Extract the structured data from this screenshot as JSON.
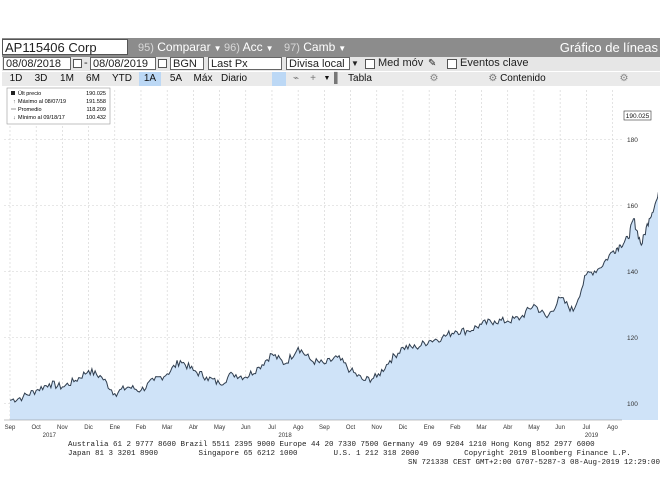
{
  "toolbar": {
    "ticker": "AP115406 Corp",
    "compare": {
      "num": "95)",
      "label": "Comparar"
    },
    "actions": {
      "num": "96)",
      "label": "Acc"
    },
    "change": {
      "num": "97)",
      "label": "Camb"
    },
    "view_title": "Gráfico de líneas"
  },
  "controls": {
    "start_date": "08/08/2018",
    "end_date": "08/08/2019",
    "source": "BGN",
    "field": "Last Px",
    "currency": "Divisa local",
    "moving_avg": "Med móv",
    "key_events": "Eventos clave",
    "separator": "-"
  },
  "periods": {
    "items": [
      "1D",
      "3D",
      "1M",
      "6M",
      "YTD",
      "1A",
      "5A",
      "Máx"
    ],
    "active": "1A",
    "frequency": "Diario",
    "table": "Tabla",
    "content": "Contenido"
  },
  "legend": {
    "last": {
      "label": "Últ precio",
      "value": "190.025"
    },
    "max": {
      "label": "Máximo al 08/07/19",
      "value": "191.558"
    },
    "avg": {
      "label": "Promedio",
      "value": "118.209"
    },
    "min": {
      "label": "Mínimo al 09/18/17",
      "value": "100.432"
    }
  },
  "colors": {
    "line": "#2f3d4e",
    "fill": "#cfe3f8",
    "grid": "#d0d0d0",
    "active_period": "#bcd8f5",
    "toolbar": "#8c8c8c"
  },
  "chart_data": {
    "type": "area",
    "x_months": [
      "Sep",
      "Oct",
      "Nov",
      "Dic",
      "Ene",
      "Feb",
      "Mar",
      "Abr",
      "May",
      "Jun",
      "Jul",
      "Ago",
      "Sep",
      "Oct",
      "Nov",
      "Dic",
      "Ene",
      "Feb",
      "Mar",
      "Abr",
      "May",
      "Jun",
      "Jul",
      "Ago"
    ],
    "x_years": [
      {
        "label": "2017",
        "month_index": 1.5
      },
      {
        "label": "2018",
        "month_index": 10.5
      },
      {
        "label": "2019",
        "month_index": 22.2
      }
    ],
    "yticks": [
      100,
      120,
      140,
      160,
      180
    ],
    "ylim": [
      95,
      195
    ],
    "last_price_label": "190.025",
    "series": [
      {
        "x": [
          0,
          0.5,
          1,
          1.5,
          2,
          2.5,
          3,
          3.5,
          4,
          4.5,
          5,
          5.5,
          6,
          6.5,
          7,
          7.5,
          8,
          8.5,
          9,
          9.5,
          10,
          10.5,
          11,
          11.5,
          12,
          12.5,
          13,
          13.5,
          14,
          14.5,
          15,
          15.5,
          16,
          16.5,
          17,
          17.5,
          18,
          18.5,
          19,
          19.5,
          20,
          20.5,
          21,
          21.5,
          22,
          22.5,
          23,
          23.3,
          23.6,
          23.8,
          24.1,
          24.4,
          24.7,
          24.9,
          25.1,
          25.3,
          25.5
        ],
        "values": [
          101,
          102,
          104,
          106,
          105,
          107,
          110,
          108,
          103,
          105,
          104,
          107,
          109,
          113,
          110,
          108,
          106,
          109,
          108,
          111,
          115,
          112,
          117,
          113,
          112,
          114,
          110,
          107,
          108,
          113,
          117,
          117,
          119,
          120,
          122,
          122,
          124,
          125,
          125,
          126,
          130,
          126,
          132,
          128,
          139,
          141,
          146,
          148,
          150,
          156,
          148,
          156,
          162,
          166,
          178,
          191.6,
          190.0
        ]
      }
    ]
  },
  "footer": {
    "line1": "Australia 61 2 9777 8600 Brazil 5511 2395 9000 Europe 44 20 7330 7500 Germany 49 69 9204 1210 Hong Kong 852 2977 6000",
    "line2": "Japan 81 3 3201 8900         Singapore 65 6212 1000        U.S. 1 212 318 2000          Copyright 2019 Bloomberg Finance L.P.",
    "line3": "SN 721338 CEST GMT+2:00 G707-5287-3 08-Aug-2019 12:29:00"
  }
}
